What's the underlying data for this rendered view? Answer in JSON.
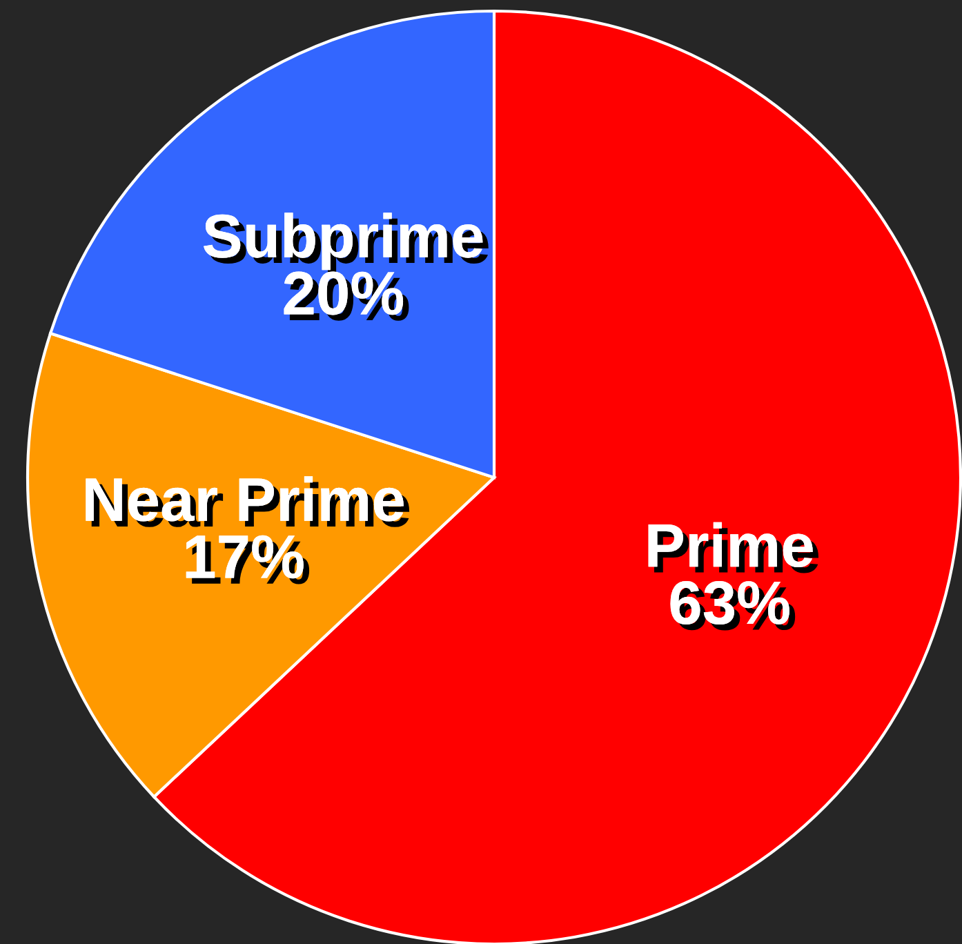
{
  "chart_data": {
    "type": "pie",
    "categories": [
      "Prime",
      "Near Prime",
      "Subprime"
    ],
    "values": [
      63,
      17,
      20
    ],
    "colors": [
      "#ff0000",
      "#ff9900",
      "#3366ff"
    ],
    "value_labels": [
      "63%",
      "17%",
      "20%"
    ]
  }
}
